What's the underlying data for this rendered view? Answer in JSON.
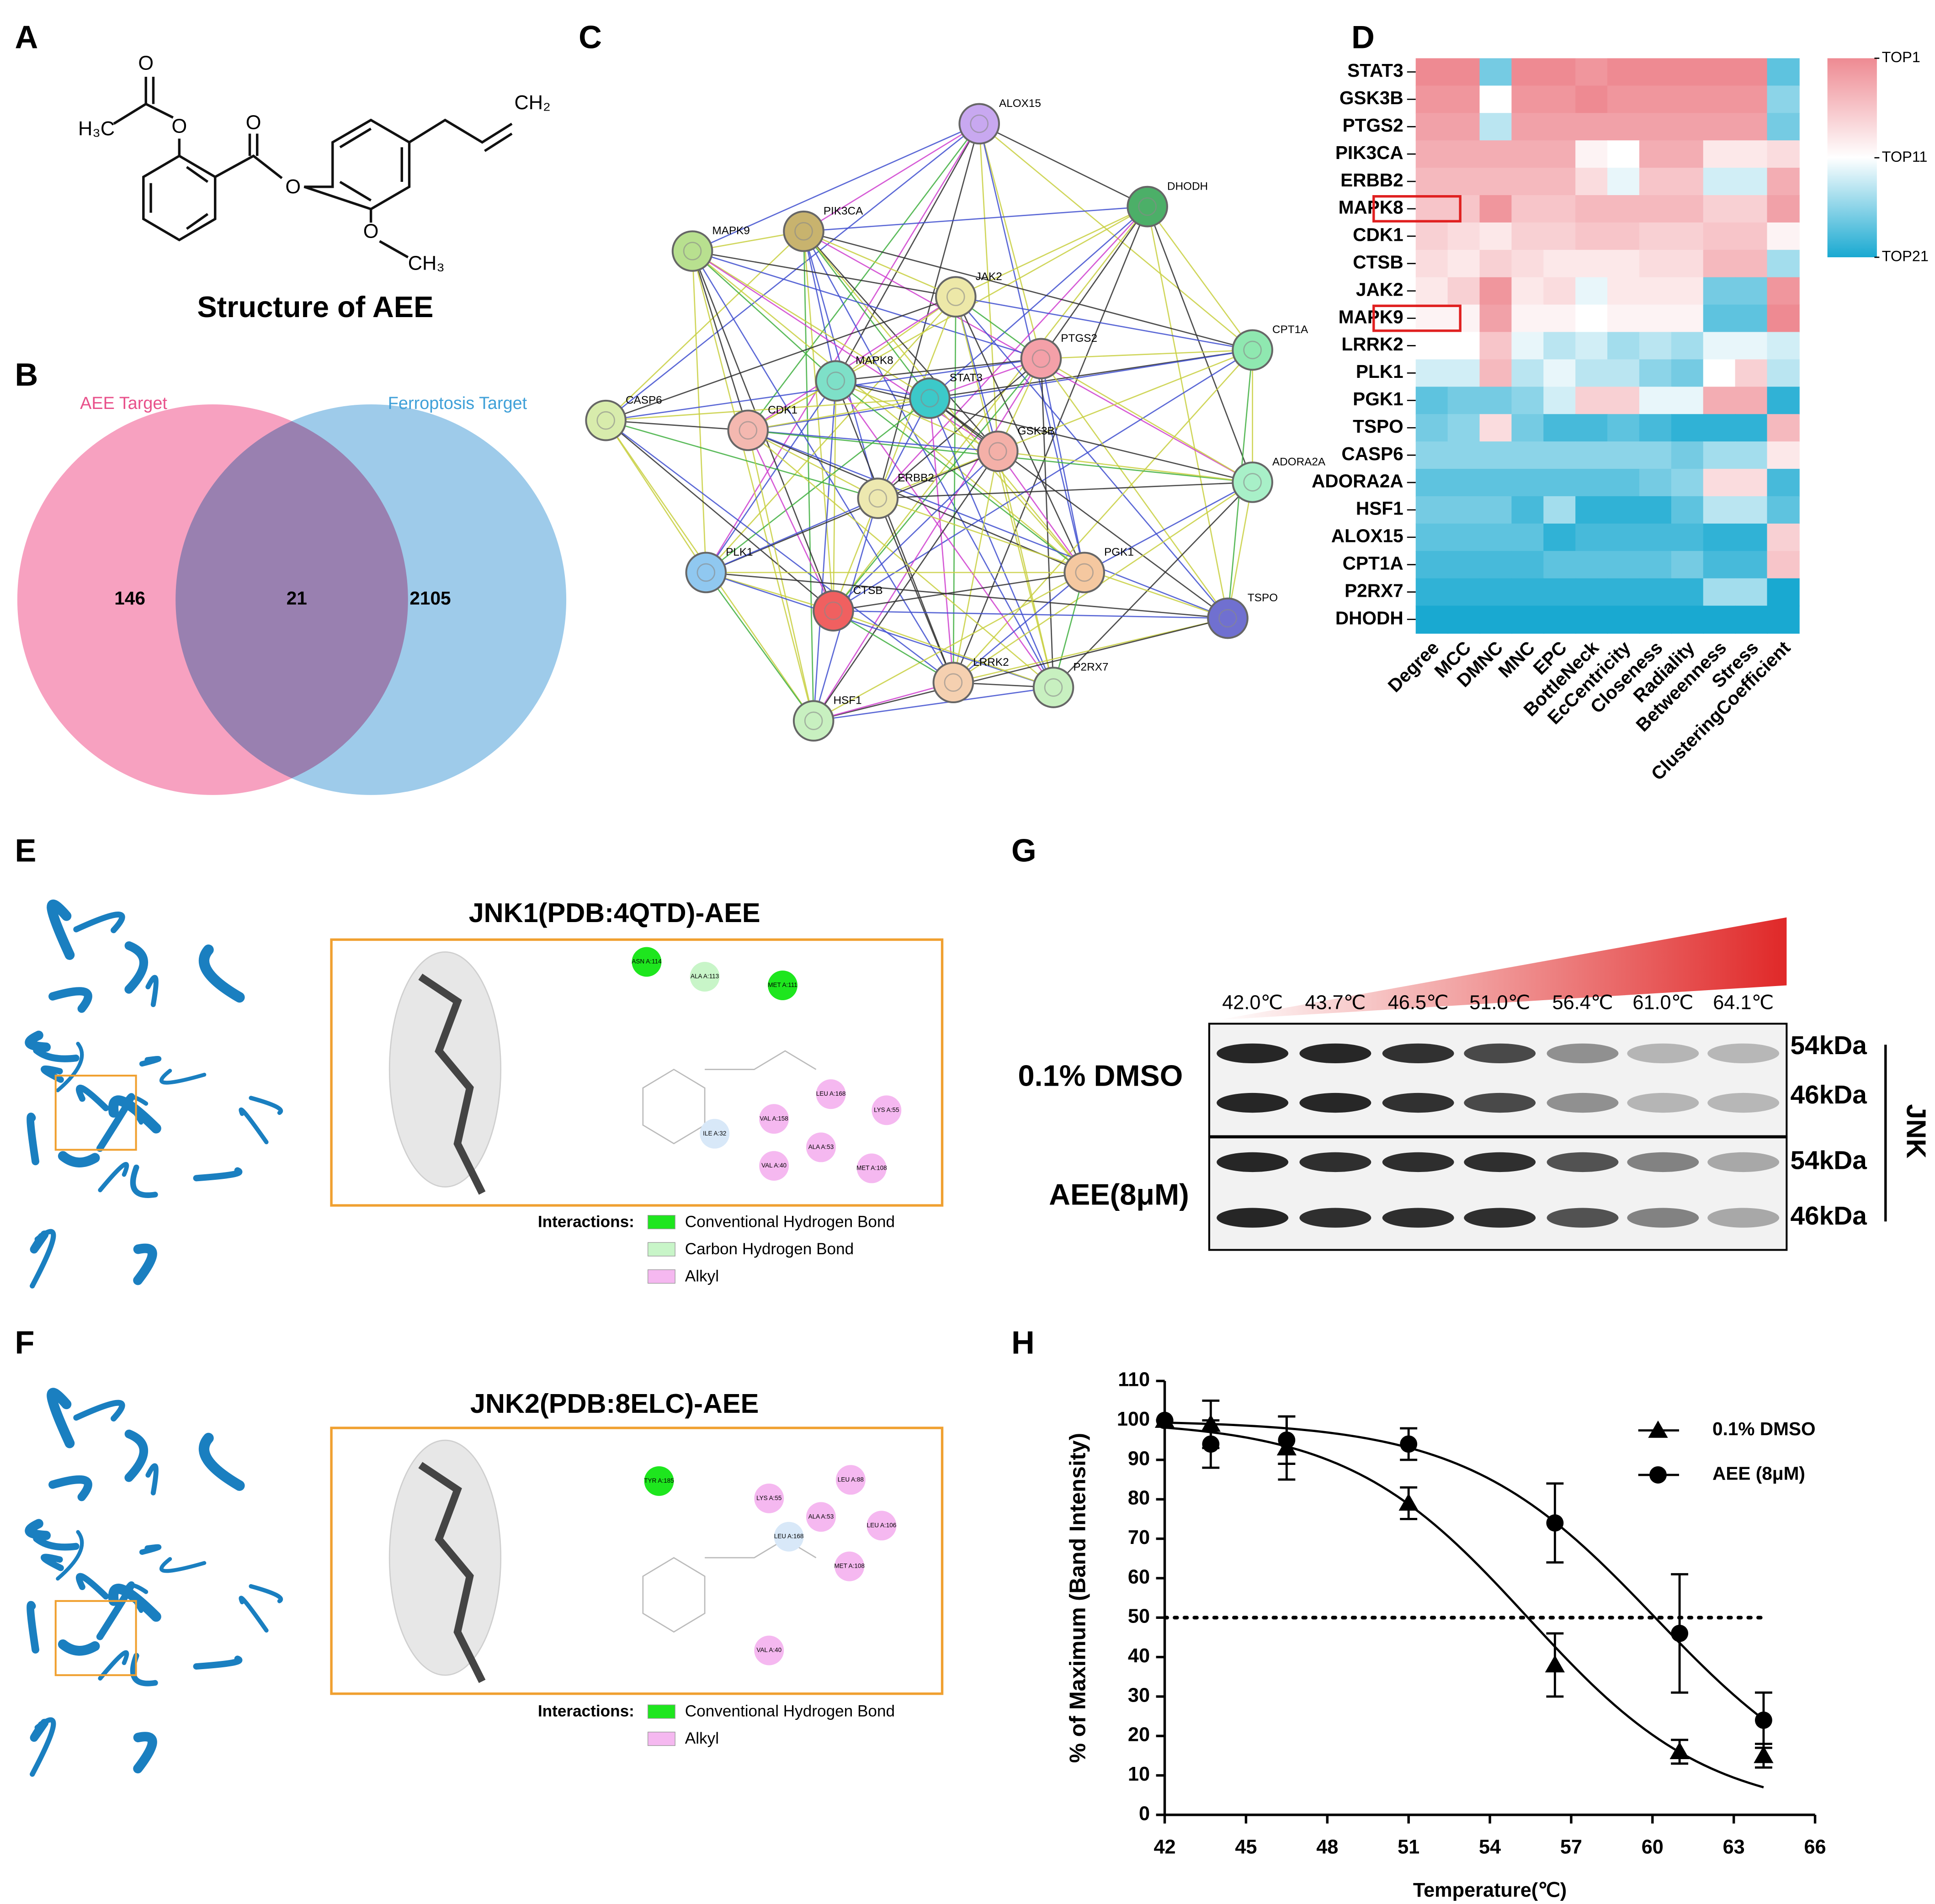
{
  "panels": [
    "A",
    "B",
    "C",
    "D",
    "E",
    "F",
    "G",
    "H"
  ],
  "structure": {
    "atoms": [
      "O",
      "O",
      "H₃C",
      "O",
      "O",
      "CH₂",
      "O",
      "CH₃"
    ],
    "caption": "Structure of AEE"
  },
  "venn": {
    "sets": [
      {
        "name": "AEE Target",
        "color": "#f7a1c0",
        "label_color": "#e8508a"
      },
      {
        "name": "Ferroptosis Target",
        "color": "#9ecbea",
        "label_color": "#3fa0d8"
      }
    ],
    "counts": {
      "only_a": 146,
      "both": 21,
      "only_b": 2105
    }
  },
  "network": {
    "nodes": [
      {
        "label": "ALOX15",
        "color": "#c8a8f0"
      },
      {
        "label": "DHODH",
        "color": "#4caf68"
      },
      {
        "label": "PIK3CA",
        "color": "#c8b36e"
      },
      {
        "label": "MAPK9",
        "color": "#b8e08f"
      },
      {
        "label": "JAK2",
        "color": "#ede8a8"
      },
      {
        "label": "CPT1A",
        "color": "#8fe8b0"
      },
      {
        "label": "PTGS2",
        "color": "#f4a0a8"
      },
      {
        "label": "MAPK8",
        "color": "#7ee0c8"
      },
      {
        "label": "STAT3",
        "color": "#3cc9c9"
      },
      {
        "label": "CASP6",
        "color": "#d8ecac"
      },
      {
        "label": "CDK1",
        "color": "#f4b8b0"
      },
      {
        "label": "GSK3B",
        "color": "#f4b0a8"
      },
      {
        "label": "ADORA2A",
        "color": "#a8f0c8"
      },
      {
        "label": "ERBB2",
        "color": "#ede8b0"
      },
      {
        "label": "PLK1",
        "color": "#90c8f0"
      },
      {
        "label": "PGK1",
        "color": "#f5c8a0"
      },
      {
        "label": "CTSB",
        "color": "#f06060"
      },
      {
        "label": "TSPO",
        "color": "#7070d0"
      },
      {
        "label": "LRRK2",
        "color": "#f5d0b0"
      },
      {
        "label": "P2RX7",
        "color": "#c8f0c0"
      },
      {
        "label": "HSF1",
        "color": "#c8f0c0"
      }
    ]
  },
  "docking": [
    {
      "title": "JNK1(PDB:4QTD)-AEE",
      "legend_title": "Interactions:",
      "interactions": [
        {
          "name": "Conventional Hydrogen Bond",
          "color": "#1ee61e"
        },
        {
          "name": "Carbon Hydrogen Bond",
          "color": "#c8f5c8"
        },
        {
          "name": "Alkyl",
          "color": "#f5b8f0"
        }
      ],
      "residues": [
        {
          "label": "ASN A:114",
          "color": "#1ee61e"
        },
        {
          "label": "ALA A:113",
          "color": "#c8f5c8"
        },
        {
          "label": "MET A:111",
          "color": "#1ee61e"
        },
        {
          "label": "LEU A:168",
          "color": "#f5b8f0"
        },
        {
          "label": "LYS A:55",
          "color": "#f5b8f0"
        },
        {
          "label": "VAL A:158",
          "color": "#f5b8f0"
        },
        {
          "label": "ILE A:32",
          "color": "#d8e8f8"
        },
        {
          "label": "ALA A:53",
          "color": "#f5b8f0"
        },
        {
          "label": "VAL A:40",
          "color": "#f5b8f0"
        },
        {
          "label": "MET A:108",
          "color": "#f5b8f0"
        }
      ]
    },
    {
      "title": "JNK2(PDB:8ELC)-AEE",
      "legend_title": "Interactions:",
      "interactions": [
        {
          "name": "Conventional Hydrogen Bond",
          "color": "#1ee61e"
        },
        {
          "name": "Alkyl",
          "color": "#f5b8f0"
        }
      ],
      "residues": [
        {
          "label": "TYR A:185",
          "color": "#1ee61e"
        },
        {
          "label": "LYS A:55",
          "color": "#f5b8f0"
        },
        {
          "label": "LEU A:88",
          "color": "#f5b8f0"
        },
        {
          "label": "ALA A:53",
          "color": "#f5b8f0"
        },
        {
          "label": "LEU A:168",
          "color": "#d8e8f8"
        },
        {
          "label": "LEU A:106",
          "color": "#f5b8f0"
        },
        {
          "label": "MET A:108",
          "color": "#f5b8f0"
        },
        {
          "label": "VAL A:40",
          "color": "#f5b8f0"
        }
      ]
    }
  ],
  "blot": {
    "temperatures": [
      "42.0℃",
      "43.7℃",
      "46.5℃",
      "51.0℃",
      "56.4℃",
      "61.0℃",
      "64.1℃"
    ],
    "conditions": [
      "0.1% DMSO",
      "AEE(8μM)"
    ],
    "bands": [
      "54kDa",
      "46kDa"
    ],
    "target": "JNK"
  },
  "chart_data": [
    {
      "type": "heatmap",
      "rows": [
        "STAT3",
        "GSK3B",
        "PTGS2",
        "PIK3CA",
        "ERBB2",
        "MAPK8",
        "CDK1",
        "CTSB",
        "JAK2",
        "MAPK9",
        "LRRK2",
        "PLK1",
        "PGK1",
        "TSPO",
        "CASP6",
        "ADORA2A",
        "HSF1",
        "ALOX15",
        "CPT1A",
        "P2RX7",
        "DHODH"
      ],
      "columns": [
        "Degree",
        "MCC",
        "DMNC",
        "MNC",
        "EPC",
        "BottleNeck",
        "EcCentricity",
        "Closeness",
        "Radiality",
        "Betweenness",
        "Stress",
        "ClusteringCoefficient"
      ],
      "values": [
        [
          1,
          1,
          17,
          1,
          1,
          2,
          1,
          1,
          1,
          1,
          1,
          18
        ],
        [
          2,
          2,
          11,
          2,
          2,
          1,
          2,
          2,
          2,
          2,
          2,
          16
        ],
        [
          3,
          3,
          14,
          3,
          3,
          3,
          3,
          3,
          3,
          3,
          3,
          17
        ],
        [
          4,
          4,
          4,
          4,
          4,
          10,
          11,
          4,
          4,
          9,
          9,
          8
        ],
        [
          5,
          5,
          5,
          5,
          5,
          8,
          12,
          6,
          6,
          13,
          13,
          4
        ],
        [
          6,
          6,
          2,
          6,
          6,
          5,
          5,
          5,
          5,
          7,
          7,
          3
        ],
        [
          7,
          8,
          9,
          7,
          7,
          6,
          6,
          7,
          7,
          6,
          6,
          10
        ],
        [
          8,
          9,
          7,
          8,
          9,
          9,
          9,
          8,
          8,
          5,
          5,
          15
        ],
        [
          9,
          7,
          2,
          9,
          8,
          12,
          9,
          9,
          9,
          17,
          17,
          2
        ],
        [
          10,
          10,
          3,
          10,
          10,
          11,
          10,
          10,
          10,
          18,
          18,
          1
        ],
        [
          11,
          11,
          6,
          12,
          14,
          13,
          15,
          14,
          15,
          12,
          12,
          13
        ],
        [
          13,
          13,
          5,
          14,
          12,
          14,
          14,
          16,
          17,
          11,
          7,
          14
        ],
        [
          18,
          17,
          17,
          16,
          13,
          7,
          7,
          12,
          12,
          4,
          4,
          20
        ],
        [
          17,
          16,
          8,
          17,
          19,
          19,
          18,
          19,
          20,
          20,
          20,
          5
        ],
        [
          16,
          16,
          16,
          16,
          16,
          16,
          16,
          16,
          17,
          15,
          15,
          9
        ],
        [
          18,
          18,
          18,
          18,
          18,
          18,
          18,
          17,
          16,
          8,
          8,
          19
        ],
        [
          17,
          17,
          17,
          19,
          15,
          20,
          20,
          20,
          18,
          14,
          14,
          18
        ],
        [
          18,
          18,
          18,
          18,
          20,
          19,
          19,
          19,
          19,
          20,
          20,
          7
        ],
        [
          19,
          19,
          19,
          19,
          18,
          18,
          18,
          18,
          17,
          19,
          19,
          6
        ],
        [
          20,
          20,
          20,
          20,
          20,
          20,
          20,
          20,
          20,
          15,
          15,
          21
        ],
        [
          21,
          21,
          21,
          21,
          21,
          21,
          21,
          21,
          21,
          21,
          21,
          21
        ]
      ],
      "zlim": [
        1,
        21
      ],
      "colors": [
        "#ee8a92",
        "#ffffff",
        "#19a9d1"
      ],
      "colorbar_ticks": [
        {
          "value": 1,
          "label": "TOP1"
        },
        {
          "value": 11,
          "label": "TOP11"
        },
        {
          "value": 21,
          "label": "TOP21"
        }
      ],
      "highlight_rows": [
        5,
        9
      ],
      "highlight_color": "#e02020"
    },
    {
      "type": "line",
      "xlabel": "Temperature(℃)",
      "ylabel": "% of Maximum (Band Intensity)",
      "x": [
        42,
        43.7,
        46.5,
        51,
        56.4,
        61,
        64.1
      ],
      "xlim": [
        42,
        66
      ],
      "xticks": [
        42,
        45,
        48,
        51,
        54,
        57,
        60,
        63,
        66
      ],
      "ylim": [
        0,
        110
      ],
      "yticks": [
        0,
        10,
        20,
        30,
        40,
        50,
        60,
        70,
        80,
        90,
        100,
        110
      ],
      "reference_line": 50,
      "series": [
        {
          "name": "0.1% DMSO",
          "marker": "triangle",
          "color": "#000000",
          "values": [
            100,
            99,
            93,
            79,
            38,
            16,
            15
          ],
          "errors": [
            0,
            6,
            8,
            4,
            8,
            3,
            3
          ],
          "fit": {
            "v50": 55.4,
            "slope": 3.36
          }
        },
        {
          "name": "AEE (8μM)",
          "marker": "circle",
          "color": "#000000",
          "values": [
            100,
            94,
            95,
            94,
            74,
            46,
            24
          ],
          "errors": [
            0,
            6,
            6,
            4,
            10,
            15,
            7
          ],
          "fit": {
            "v50": 60.1,
            "slope": 3.5
          }
        }
      ]
    }
  ]
}
